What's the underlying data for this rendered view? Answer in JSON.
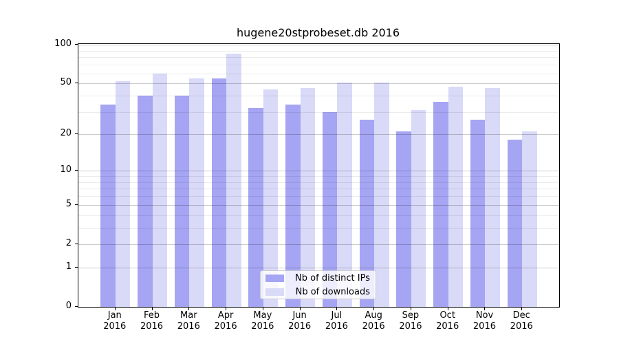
{
  "chart_data": {
    "type": "bar",
    "title": "hugene20stprobeset.db 2016",
    "scale": "log1p",
    "ylim": [
      0,
      100
    ],
    "grid": true,
    "y_major_ticks": [
      100,
      50,
      20,
      10,
      5,
      2,
      1,
      0
    ],
    "y_minor_gridlines": [
      3,
      4,
      6,
      7,
      8,
      9,
      30,
      40,
      60,
      70,
      80,
      90
    ],
    "categories": [
      "Jan",
      "Feb",
      "Mar",
      "Apr",
      "May",
      "Jun",
      "Jul",
      "Aug",
      "Sep",
      "Oct",
      "Nov",
      "Dec"
    ],
    "year_label": "2016",
    "series": [
      {
        "name": "Nb of distinct IPs",
        "color": "#a5a5f3",
        "values": [
          34,
          40,
          40,
          55,
          32,
          34,
          30,
          26,
          21,
          36,
          26,
          18
        ]
      },
      {
        "name": "Nb of downloads",
        "color": "#d9d9f8",
        "values": [
          52,
          60,
          55,
          85,
          45,
          46,
          51,
          51,
          31,
          47,
          46,
          21
        ]
      }
    ],
    "legend": {
      "position": "lower-center",
      "entries": [
        "Nb of distinct IPs",
        "Nb of downloads"
      ]
    }
  }
}
